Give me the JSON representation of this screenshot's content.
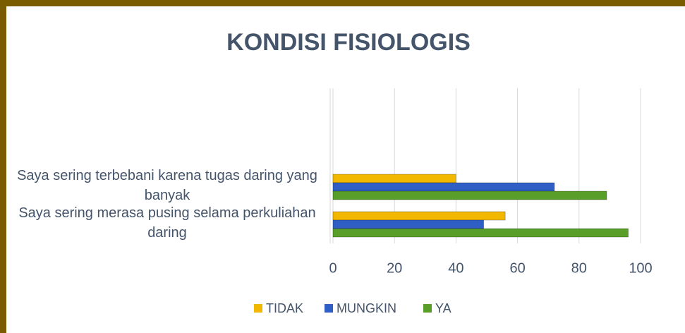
{
  "chart_data": {
    "type": "barh",
    "title": "KONDISI FISIOLOGIS",
    "categories": [
      "Saya sering terbebani karena tugas daring yang banyak",
      "Saya sering merasa pusing selama perkuliahan daring"
    ],
    "series": [
      {
        "name": "TIDAK",
        "color": "#f2b800",
        "values": [
          40,
          56
        ]
      },
      {
        "name": "MUNGKIN",
        "color": "#2f5fc4",
        "values": [
          72,
          49
        ]
      },
      {
        "name": "YA",
        "color": "#5a9e2a",
        "values": [
          89,
          96
        ]
      }
    ],
    "xlim": [
      0,
      100
    ],
    "xticks": [
      0,
      20,
      40,
      60,
      80,
      100
    ],
    "grid": true,
    "legend": "bottom"
  }
}
